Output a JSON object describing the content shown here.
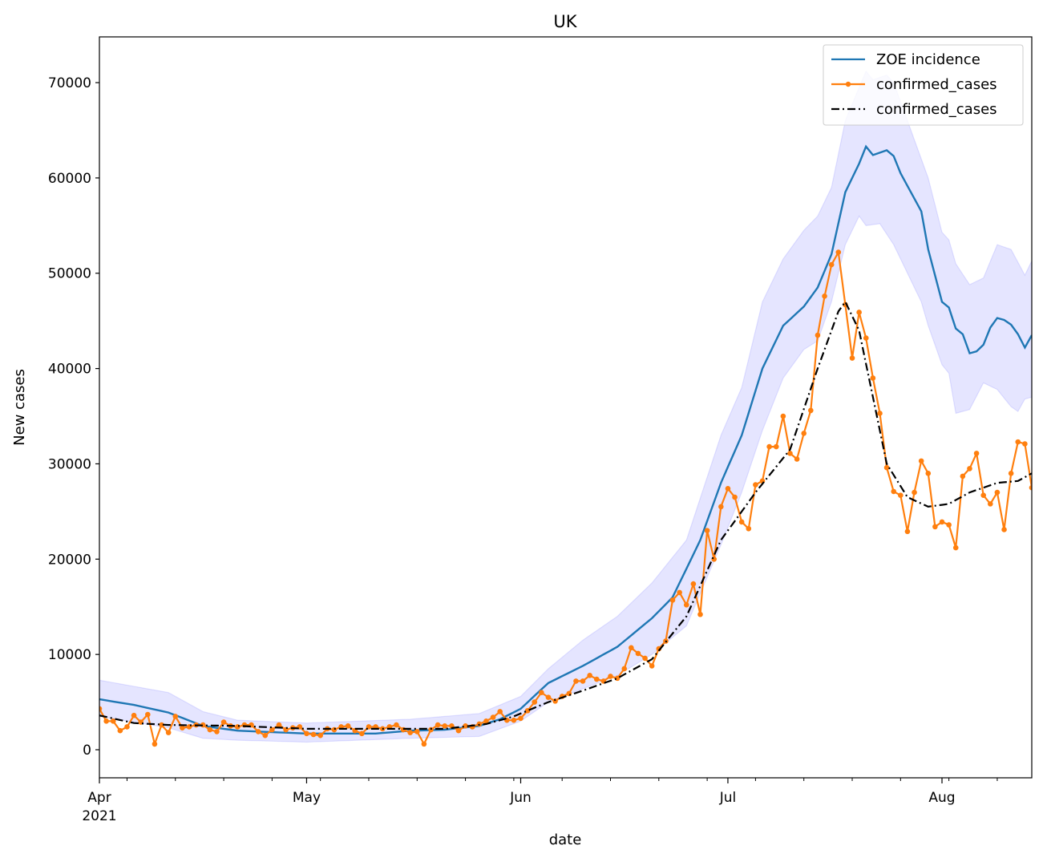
{
  "chart_data": {
    "type": "line",
    "title": "UK",
    "xlabel": "date",
    "ylabel": "New cases",
    "start_date": "2021-04-01",
    "num_days": 136,
    "xlim_days": [
      0,
      135
    ],
    "ylim": [
      -2945,
      74800
    ],
    "yticks": [
      0,
      10000,
      20000,
      30000,
      40000,
      50000,
      60000,
      70000
    ],
    "xticks": [
      {
        "day": 0,
        "label": "Apr",
        "sublabel": "2021"
      },
      {
        "day": 30,
        "label": "May"
      },
      {
        "day": 61,
        "label": "Jun"
      },
      {
        "day": 91,
        "label": "Jul"
      },
      {
        "day": 122,
        "label": "Aug"
      }
    ],
    "minor_tick_days": [
      4,
      11,
      18,
      25,
      32,
      39,
      46,
      53,
      60,
      67,
      74,
      81,
      88,
      95,
      102,
      109,
      116,
      123,
      130
    ],
    "legend": {
      "placement": "top-right",
      "entries": [
        "ZOE incidence",
        "confirmed_cases",
        "confirmed_cases"
      ]
    },
    "colors": {
      "zoe": "#1f77b4",
      "confirmed": "#ff7f0e",
      "smoothed": "#000000",
      "band": "#0000ff"
    },
    "series": [
      {
        "name": "ZOE incidence",
        "style": "line",
        "keypoints": [
          [
            0,
            5300
          ],
          [
            5,
            4700
          ],
          [
            10,
            3900
          ],
          [
            15,
            2500
          ],
          [
            20,
            2000
          ],
          [
            30,
            1700
          ],
          [
            40,
            1700
          ],
          [
            45,
            2000
          ],
          [
            50,
            2100
          ],
          [
            55,
            2500
          ],
          [
            58,
            3200
          ],
          [
            61,
            4300
          ],
          [
            65,
            7000
          ],
          [
            70,
            8800
          ],
          [
            75,
            10800
          ],
          [
            80,
            13800
          ],
          [
            83,
            16000
          ],
          [
            87,
            22000
          ],
          [
            90,
            28000
          ],
          [
            93,
            33000
          ],
          [
            96,
            40000
          ],
          [
            99,
            44500
          ],
          [
            102,
            46500
          ],
          [
            104,
            48500
          ],
          [
            106,
            52000
          ],
          [
            108,
            58500
          ],
          [
            110,
            61500
          ],
          [
            111,
            63300
          ],
          [
            112,
            62400
          ],
          [
            114,
            62900
          ],
          [
            115,
            62300
          ],
          [
            116,
            60500
          ],
          [
            119,
            56500
          ],
          [
            120,
            52500
          ],
          [
            122,
            47000
          ],
          [
            123,
            46400
          ],
          [
            124,
            44200
          ],
          [
            125,
            43600
          ],
          [
            126,
            41600
          ],
          [
            127,
            41800
          ],
          [
            128,
            42500
          ],
          [
            129,
            44300
          ],
          [
            130,
            45300
          ],
          [
            131,
            45100
          ],
          [
            132,
            44600
          ],
          [
            133,
            43600
          ],
          [
            134,
            42200
          ],
          [
            135,
            43500
          ]
        ]
      },
      {
        "name": "ZOE interval",
        "style": "band",
        "upper": [
          [
            0,
            7300
          ],
          [
            10,
            6000
          ],
          [
            15,
            4000
          ],
          [
            20,
            3100
          ],
          [
            30,
            2800
          ],
          [
            45,
            3200
          ],
          [
            55,
            3800
          ],
          [
            61,
            5600
          ],
          [
            65,
            8500
          ],
          [
            70,
            11500
          ],
          [
            75,
            14000
          ],
          [
            80,
            17500
          ],
          [
            85,
            22000
          ],
          [
            90,
            33000
          ],
          [
            93,
            38000
          ],
          [
            96,
            47000
          ],
          [
            99,
            51500
          ],
          [
            102,
            54500
          ],
          [
            104,
            56000
          ],
          [
            106,
            59000
          ],
          [
            108,
            66000
          ],
          [
            110,
            69500
          ],
          [
            111,
            71200
          ],
          [
            112,
            70300
          ],
          [
            114,
            70800
          ],
          [
            115,
            70000
          ],
          [
            117,
            66000
          ],
          [
            120,
            60000
          ],
          [
            122,
            54300
          ],
          [
            123,
            53500
          ],
          [
            124,
            51000
          ],
          [
            126,
            48800
          ],
          [
            128,
            49500
          ],
          [
            130,
            53000
          ],
          [
            132,
            52500
          ],
          [
            134,
            49800
          ],
          [
            135,
            51300
          ]
        ],
        "lower": [
          [
            0,
            3500
          ],
          [
            10,
            2300
          ],
          [
            15,
            1200
          ],
          [
            20,
            1000
          ],
          [
            30,
            800
          ],
          [
            45,
            1200
          ],
          [
            55,
            1400
          ],
          [
            61,
            3000
          ],
          [
            65,
            5000
          ],
          [
            70,
            6400
          ],
          [
            75,
            7800
          ],
          [
            80,
            10000
          ],
          [
            85,
            13000
          ],
          [
            90,
            21500
          ],
          [
            93,
            27000
          ],
          [
            96,
            33500
          ],
          [
            99,
            39000
          ],
          [
            102,
            42000
          ],
          [
            104,
            42900
          ],
          [
            106,
            47000
          ],
          [
            108,
            53000
          ],
          [
            110,
            56000
          ],
          [
            111,
            55000
          ],
          [
            113,
            55200
          ],
          [
            115,
            53000
          ],
          [
            117,
            50000
          ],
          [
            119,
            47000
          ],
          [
            120,
            44500
          ],
          [
            122,
            40400
          ],
          [
            123,
            39500
          ],
          [
            124,
            35300
          ],
          [
            126,
            35700
          ],
          [
            128,
            38500
          ],
          [
            130,
            37800
          ],
          [
            132,
            36000
          ],
          [
            133,
            35500
          ],
          [
            134,
            36800
          ],
          [
            135,
            37000
          ]
        ]
      },
      {
        "name": "confirmed_cases",
        "style": "line-markers",
        "values": [
          4300,
          3000,
          3000,
          2000,
          2400,
          3600,
          2900,
          3700,
          600,
          2600,
          1800,
          3500,
          2300,
          2400,
          2600,
          2600,
          2100,
          1900,
          2900,
          2500,
          2400,
          2600,
          2600,
          1900,
          1500,
          2100,
          2600,
          2100,
          2300,
          2400,
          1700,
          1600,
          1500,
          2200,
          2100,
          2400,
          2500,
          2000,
          1700,
          2400,
          2400,
          2200,
          2400,
          2600,
          2100,
          1800,
          1900,
          600,
          2100,
          2600,
          2500,
          2500,
          2000,
          2500,
          2400,
          2700,
          3000,
          3400,
          4000,
          3100,
          3100,
          3300,
          4100,
          5000,
          6000,
          5500,
          5100,
          5600,
          5900,
          7200,
          7200,
          7800,
          7400,
          7200,
          7700,
          7500,
          8500,
          10700,
          10100,
          9600,
          8800,
          10600,
          11400,
          15700,
          16500,
          15200,
          17400,
          14200,
          23000,
          20000,
          25500,
          27400,
          26500,
          23900,
          23200,
          27800,
          28200,
          31800,
          31800,
          35000,
          31100,
          30500,
          33200,
          35600,
          43500,
          47600,
          50900,
          52200,
          46700,
          41100,
          45900,
          43200,
          39000,
          35300,
          29600,
          27100,
          26700,
          22900,
          27000,
          30300,
          29000,
          23400,
          23900,
          23600,
          21200,
          28700,
          29500,
          31100,
          26700,
          25800,
          27000,
          23100,
          29000,
          32300,
          32100,
          27500
        ]
      },
      {
        "name": "confirmed_cases",
        "style": "dash-dot",
        "keypoints": [
          [
            0,
            3600
          ],
          [
            5,
            2800
          ],
          [
            10,
            2600
          ],
          [
            20,
            2500
          ],
          [
            30,
            2200
          ],
          [
            40,
            2200
          ],
          [
            50,
            2200
          ],
          [
            56,
            2700
          ],
          [
            60,
            3500
          ],
          [
            65,
            5000
          ],
          [
            70,
            6200
          ],
          [
            75,
            7500
          ],
          [
            80,
            9500
          ],
          [
            85,
            14000
          ],
          [
            90,
            22000
          ],
          [
            95,
            27000
          ],
          [
            100,
            31500
          ],
          [
            104,
            40000
          ],
          [
            107,
            46000
          ],
          [
            108,
            47000
          ],
          [
            110,
            44000
          ],
          [
            112,
            37000
          ],
          [
            114,
            30000
          ],
          [
            117,
            26500
          ],
          [
            120,
            25500
          ],
          [
            123,
            25800
          ],
          [
            126,
            27000
          ],
          [
            130,
            28000
          ],
          [
            133,
            28200
          ],
          [
            135,
            29000
          ]
        ]
      }
    ]
  }
}
